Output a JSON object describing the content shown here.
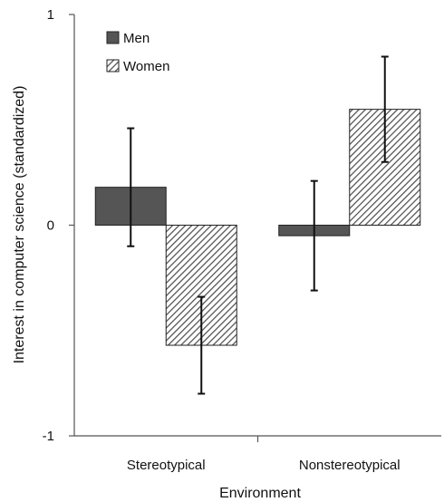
{
  "chart_data": {
    "type": "bar",
    "title": "",
    "xlabel": "Environment",
    "ylabel": "Interest in computer science (standardized)",
    "ylim": [
      -1,
      1
    ],
    "yticks": [
      -1,
      0,
      1
    ],
    "categories": [
      "Stereotypical",
      "Nonstereotypical"
    ],
    "series": [
      {
        "name": "Men",
        "values": [
          0.18,
          -0.05
        ],
        "error": [
          0.28,
          0.26
        ],
        "fill": "solid",
        "color": "#555555"
      },
      {
        "name": "Women",
        "values": [
          -0.57,
          0.55
        ],
        "error": [
          0.23,
          0.25
        ],
        "fill": "hatched",
        "color": "#4a4a4a"
      }
    ],
    "legend": "top-left",
    "grid": false
  }
}
